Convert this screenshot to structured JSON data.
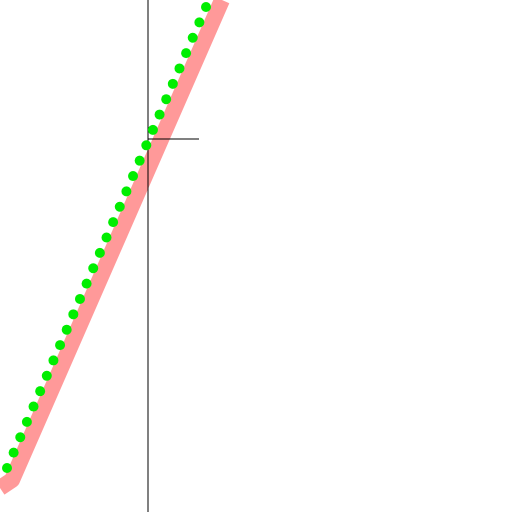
{
  "canvas": {
    "background_color": "#ffffff"
  },
  "thick_stroke": {
    "color": "#ff9999"
  },
  "dotted_stroke": {
    "color": "#00ee00",
    "dot_count": 31
  },
  "crosshair": {
    "color": "#000000"
  }
}
